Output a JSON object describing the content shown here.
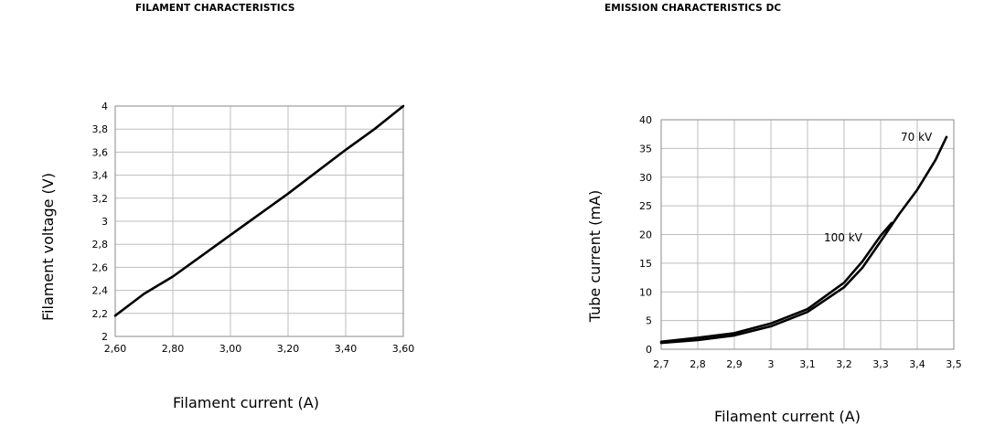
{
  "chart_data": [
    {
      "type": "line",
      "title": "FILAMENT CHARACTERISTICS",
      "xlabel": "Filament current (A)",
      "ylabel": "Filament voltage (V)",
      "xlim": [
        2.6,
        3.6
      ],
      "ylim": [
        2,
        4
      ],
      "x_ticks": [
        "2,60",
        "2,80",
        "3,00",
        "3,20",
        "3,40",
        "3,60"
      ],
      "x_tick_values": [
        2.6,
        2.8,
        3.0,
        3.2,
        3.4,
        3.6
      ],
      "y_ticks": [
        "2",
        "2,2",
        "2,4",
        "2,6",
        "2,8",
        "3",
        "3,2",
        "3,4",
        "3,6",
        "3,8",
        "4"
      ],
      "y_tick_values": [
        2.0,
        2.2,
        2.4,
        2.6,
        2.8,
        3.0,
        3.2,
        3.4,
        3.6,
        3.8,
        4.0
      ],
      "grid": true,
      "series": [
        {
          "x": [
            2.6,
            2.7,
            2.8,
            2.9,
            3.0,
            3.1,
            3.2,
            3.3,
            3.4,
            3.5,
            3.6
          ],
          "y": [
            2.18,
            2.37,
            2.52,
            2.7,
            2.88,
            3.06,
            3.24,
            3.43,
            3.62,
            3.8,
            4.0
          ]
        }
      ]
    },
    {
      "type": "line",
      "title": "EMISSION CHARACTERISTICS DC",
      "xlabel": "Filament current (A)",
      "ylabel": "Tube current (mA)",
      "xlim": [
        2.7,
        3.5
      ],
      "ylim": [
        0,
        40
      ],
      "x_ticks": [
        "2,7",
        "2,8",
        "2,9",
        "3",
        "3,1",
        "3,2",
        "3,3",
        "3,4",
        "3,5"
      ],
      "x_tick_values": [
        2.7,
        2.8,
        2.9,
        3.0,
        3.1,
        3.2,
        3.3,
        3.4,
        3.5
      ],
      "y_ticks": [
        "0",
        "5",
        "10",
        "15",
        "20",
        "25",
        "30",
        "35",
        "40"
      ],
      "y_tick_values": [
        0,
        5,
        10,
        15,
        20,
        25,
        30,
        35,
        40
      ],
      "grid": true,
      "series": [
        {
          "name": "70 kV",
          "x": [
            2.7,
            2.8,
            2.9,
            3.0,
            3.1,
            3.2,
            3.25,
            3.3,
            3.35,
            3.4,
            3.45,
            3.48
          ],
          "y": [
            1.1,
            1.6,
            2.4,
            4.0,
            6.5,
            10.8,
            14.2,
            18.8,
            23.5,
            27.8,
            33.0,
            37.0
          ]
        },
        {
          "name": "100 kV",
          "x": [
            2.7,
            2.8,
            2.9,
            3.0,
            3.1,
            3.2,
            3.25,
            3.3,
            3.33
          ],
          "y": [
            1.3,
            2.0,
            2.8,
            4.5,
            7.0,
            11.6,
            15.3,
            19.8,
            22.0
          ]
        }
      ],
      "annotations": [
        {
          "text": "70 kV",
          "x": 3.355,
          "y": 36.3
        },
        {
          "text": "100 kV",
          "x": 3.145,
          "y": 18.8
        }
      ]
    }
  ]
}
